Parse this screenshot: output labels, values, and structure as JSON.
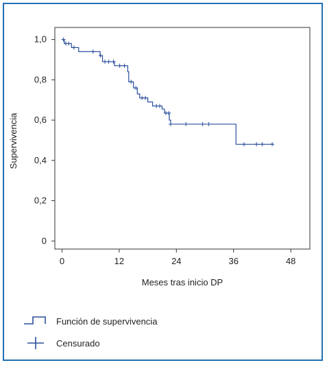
{
  "chart_data": {
    "type": "line",
    "xlabel": "Meses tras inicio DP",
    "ylabel": "Supervivencia",
    "xlim": [
      -1.5,
      52
    ],
    "ylim": [
      -0.04,
      1.06
    ],
    "x_ticks": [
      0,
      12,
      24,
      36,
      48
    ],
    "x_tick_labels": [
      "0",
      "12",
      "24",
      "36",
      "48"
    ],
    "y_ticks": [
      0,
      0.2,
      0.4,
      0.6,
      0.8,
      1.0
    ],
    "y_tick_labels": [
      "0",
      "0,2",
      "0,4",
      "0,6",
      "0,8",
      "1,0"
    ],
    "grid": false,
    "legend_position": "bottom-left",
    "series": [
      {
        "name": "Función de supervivencia",
        "kind": "step",
        "color": "#2a4e9c",
        "points": [
          [
            0,
            1.0
          ],
          [
            0.5,
            0.98
          ],
          [
            2,
            0.96
          ],
          [
            3.5,
            0.94
          ],
          [
            8,
            0.92
          ],
          [
            8.5,
            0.89
          ],
          [
            11,
            0.87
          ],
          [
            13.8,
            0.84
          ],
          [
            14,
            0.79
          ],
          [
            15,
            0.76
          ],
          [
            15.8,
            0.73
          ],
          [
            16.3,
            0.71
          ],
          [
            18,
            0.69
          ],
          [
            19,
            0.67
          ],
          [
            21,
            0.655
          ],
          [
            21.5,
            0.635
          ],
          [
            22.5,
            0.6
          ],
          [
            22.8,
            0.58
          ],
          [
            36.5,
            0.58
          ],
          [
            36.5,
            0.48
          ],
          [
            44.5,
            0.48
          ]
        ]
      },
      {
        "name": "Censurado",
        "kind": "censored",
        "color": "#2a4e9c",
        "points": [
          [
            0.3,
            1.0
          ],
          [
            0.8,
            0.98
          ],
          [
            1.4,
            0.98
          ],
          [
            2.5,
            0.96
          ],
          [
            6.5,
            0.94
          ],
          [
            8.1,
            0.92
          ],
          [
            9,
            0.89
          ],
          [
            9.8,
            0.89
          ],
          [
            10.8,
            0.89
          ],
          [
            12.1,
            0.87
          ],
          [
            13.1,
            0.87
          ],
          [
            14.5,
            0.79
          ],
          [
            15.5,
            0.76
          ],
          [
            16.8,
            0.71
          ],
          [
            17.5,
            0.71
          ],
          [
            19.8,
            0.67
          ],
          [
            20.5,
            0.67
          ],
          [
            21.8,
            0.635
          ],
          [
            22.4,
            0.635
          ],
          [
            22.8,
            0.58
          ],
          [
            26,
            0.58
          ],
          [
            29.5,
            0.58
          ],
          [
            30.8,
            0.58
          ],
          [
            38.2,
            0.48
          ],
          [
            40.8,
            0.48
          ],
          [
            42,
            0.48
          ],
          [
            44.1,
            0.48
          ]
        ]
      }
    ]
  }
}
